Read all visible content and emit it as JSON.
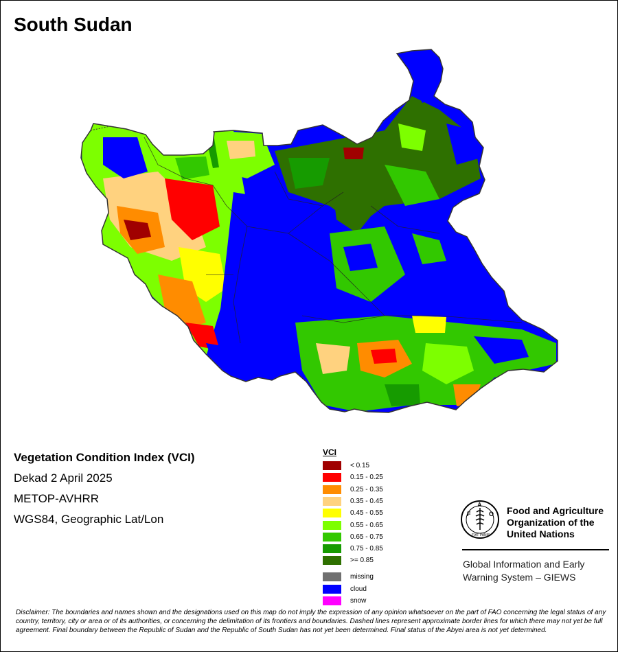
{
  "map": {
    "title": "South Sudan",
    "product": "Vegetation Condition Index (VCI)",
    "period": "Dekad 2 April 2025",
    "sensor": "METOP-AVHRR",
    "projection": "WGS84, Geographic Lat/Lon"
  },
  "legend": {
    "title": "VCI",
    "classes": [
      {
        "label": "< 0.15",
        "color": "#a00000"
      },
      {
        "label": "0.15 - 0.25",
        "color": "#ff0000"
      },
      {
        "label": "0.25 - 0.35",
        "color": "#ff8c00"
      },
      {
        "label": "0.35 - 0.45",
        "color": "#ffd27f"
      },
      {
        "label": "0.45 - 0.55",
        "color": "#ffff00"
      },
      {
        "label": "0.55 - 0.65",
        "color": "#7dff00"
      },
      {
        "label": "0.65 - 0.75",
        "color": "#32c800"
      },
      {
        "label": "0.75 - 0.85",
        "color": "#169b00"
      },
      {
        "label": ">= 0.85",
        "color": "#2e7000"
      }
    ],
    "other": [
      {
        "label": "missing",
        "color": "#707070"
      },
      {
        "label": "cloud",
        "color": "#0000ff"
      },
      {
        "label": "snow",
        "color": "#ff00ff"
      }
    ]
  },
  "organization": {
    "name": "Food and Agriculture Organization of the United Nations",
    "logo_text": "FAO",
    "logo_motto": "FIAT PANIS",
    "system": "Global Information and Early Warning System – GIEWS"
  },
  "disclaimer": "Disclaimer: The boundaries and names shown and the designations used on this map do not imply the expression of any opinion whatsoever on the part of FAO concerning the legal status of any country, territory, city or area or of its authorities, or concerning the delimitation of its frontiers and boundaries. Dashed lines represent approximate border lines for which there may not yet be full agreement.  Final boundary between the Republic of Sudan and the Republic of South Sudan has not yet been determined. Final status of the Abyei area is not yet determined."
}
